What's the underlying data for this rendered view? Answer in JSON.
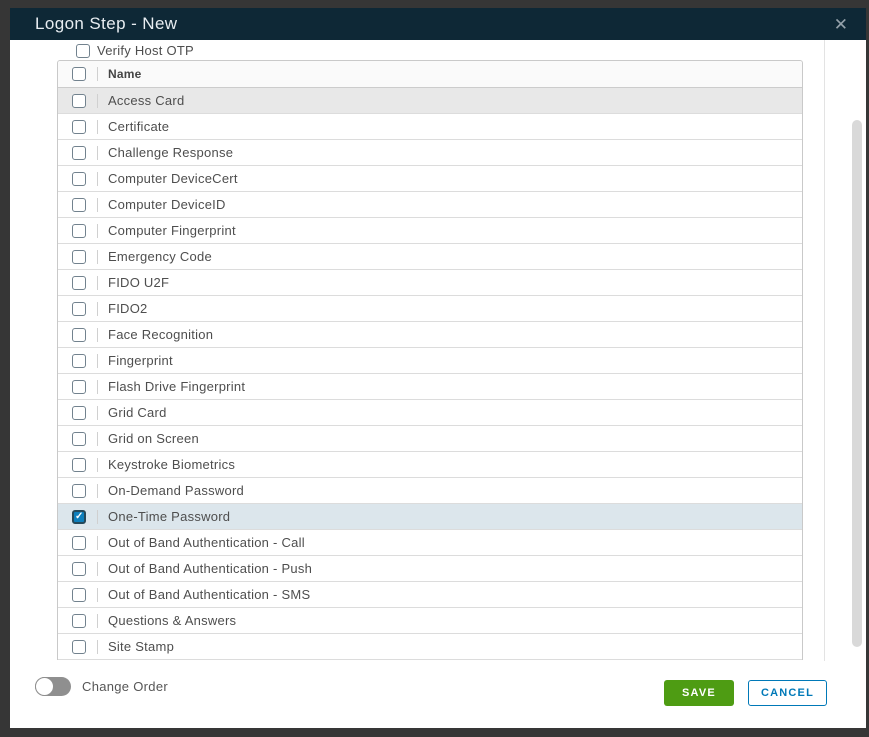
{
  "modal": {
    "title": "Logon Step - New",
    "close_glyph": "✕"
  },
  "body": {
    "top_checkbox_label": "Verify Host OTP",
    "top_checkbox_checked": false,
    "table": {
      "name_header": "Name",
      "rows": [
        {
          "label": "Access Card",
          "checked": false,
          "highlight": "gray"
        },
        {
          "label": "Certificate",
          "checked": false,
          "highlight": null
        },
        {
          "label": "Challenge Response",
          "checked": false,
          "highlight": null
        },
        {
          "label": "Computer DeviceCert",
          "checked": false,
          "highlight": null
        },
        {
          "label": "Computer DeviceID",
          "checked": false,
          "highlight": null
        },
        {
          "label": "Computer Fingerprint",
          "checked": false,
          "highlight": null
        },
        {
          "label": "Emergency Code",
          "checked": false,
          "highlight": null
        },
        {
          "label": "FIDO U2F",
          "checked": false,
          "highlight": null
        },
        {
          "label": "FIDO2",
          "checked": false,
          "highlight": null
        },
        {
          "label": "Face Recognition",
          "checked": false,
          "highlight": null
        },
        {
          "label": "Fingerprint",
          "checked": false,
          "highlight": null
        },
        {
          "label": "Flash Drive Fingerprint",
          "checked": false,
          "highlight": null
        },
        {
          "label": "Grid Card",
          "checked": false,
          "highlight": null
        },
        {
          "label": "Grid on Screen",
          "checked": false,
          "highlight": null
        },
        {
          "label": "Keystroke Biometrics",
          "checked": false,
          "highlight": null
        },
        {
          "label": "On-Demand Password",
          "checked": false,
          "highlight": null
        },
        {
          "label": "One-Time Password",
          "checked": true,
          "highlight": "blue"
        },
        {
          "label": "Out of Band Authentication - Call",
          "checked": false,
          "highlight": null
        },
        {
          "label": "Out of Band Authentication - Push",
          "checked": false,
          "highlight": null
        },
        {
          "label": "Out of Band Authentication - SMS",
          "checked": false,
          "highlight": null
        },
        {
          "label": "Questions & Answers",
          "checked": false,
          "highlight": null
        },
        {
          "label": "Site Stamp",
          "checked": false,
          "highlight": null
        }
      ]
    }
  },
  "footer": {
    "toggle_label": "Change Order",
    "toggle_on": false,
    "save_label": "SAVE",
    "cancel_label": "CANCEL"
  },
  "colors": {
    "header_bg": "#0e2836",
    "accent_blue": "#0079b8",
    "checked_checkbox": "#0e7fbc",
    "save_green": "#4e9c13",
    "selected_row": "#dce6ec",
    "hover_row": "#e8e8e8",
    "backdrop": "#363636"
  }
}
